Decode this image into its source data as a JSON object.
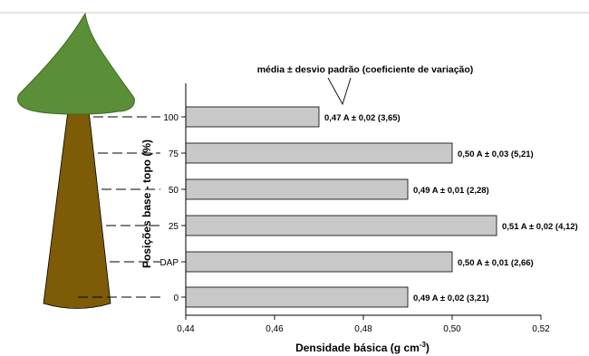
{
  "chart_data": {
    "type": "bar",
    "orientation": "horizontal",
    "categories": [
      "100",
      "75",
      "50",
      "25",
      "DAP",
      "0"
    ],
    "values": [
      0.47,
      0.5,
      0.49,
      0.51,
      0.5,
      0.49
    ],
    "data_labels": [
      "0,47 A ±  0,02 (3,65)",
      "0,50 A ± 0,03 (5,21)",
      "0,49 A ± 0,01 (2,28)",
      "0,51 A ± 0,02 (4,12)",
      "0,50 A ± 0,01 (2,66)",
      "0,49 A ± 0,02 (3,21)"
    ],
    "xlim": [
      0.44,
      0.52
    ],
    "xticks": [
      "0,44",
      "0,46",
      "0,48",
      "0,50",
      "0,52"
    ],
    "xlabel_main": "Densidade básica (g cm",
    "xlabel_sup": "-3",
    "xlabel_close": ")",
    "ylabel": "Posições base - topo (%)",
    "annotation": "média ± desvio padrão (coeficiente de variação)",
    "grid": false,
    "legend": "none",
    "colors": {
      "bar_fill": "#c8c8c8",
      "bar_stroke": "#000000",
      "tree_crown": "#5a8f37",
      "tree_trunk": "#7e5b06"
    }
  }
}
